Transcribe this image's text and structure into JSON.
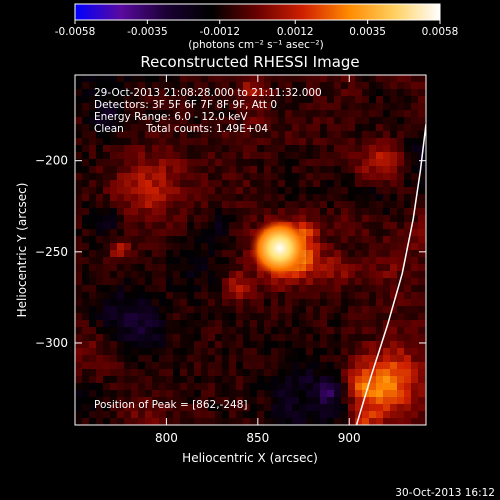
{
  "chart_data": {
    "type": "heatmap",
    "title": "Reconstructed RHESSI Image",
    "xlabel": "Heliocentric X (arcsec)",
    "ylabel": "Heliocentric Y (arcsec)",
    "xlim": [
      750,
      942
    ],
    "ylim": [
      -345,
      -153
    ],
    "x_ticks": [
      800,
      850,
      900
    ],
    "y_ticks": [
      -200,
      -250,
      -300
    ],
    "colorbar": {
      "min": -0.0058,
      "max": 0.0058,
      "tick_values": [
        -0.0058,
        -0.0035,
        -0.0012,
        0.0012,
        0.0035,
        0.0058
      ],
      "tick_labels": [
        "-0.0058",
        "-0.0035",
        "-0.0012",
        "0.0012",
        "0.0035",
        "0.0058"
      ],
      "unit_label": "(photons cm⁻² s⁻¹ asec⁻²)",
      "colormap": [
        "#0000ff",
        "#5a0aa0",
        "#1a0033",
        "#000000",
        "#6a0000",
        "#d02000",
        "#ff8a00",
        "#ffd060",
        "#ffffff"
      ]
    },
    "annotations": {
      "time_range": "29-Oct-2013 21:08:28.000 to 21:11:32.000",
      "detectors": "Detectors: 3F 5F 6F 7F 8F 9F, Att 0",
      "energy": "Energy Range: 6.0 - 12.0 keV",
      "clean": "Clean",
      "total_counts": "Total counts: 1.49E+04",
      "peak": "Position of Peak = [862,-248]"
    },
    "peak": {
      "x": 862,
      "y": -248
    },
    "limb": [
      [
        904,
        -345
      ],
      [
        912,
        -318
      ],
      [
        921,
        -290
      ],
      [
        929,
        -262
      ],
      [
        935,
        -232
      ],
      [
        939,
        -205
      ],
      [
        942,
        -180
      ]
    ]
  },
  "footer": {
    "timestamp": "30-Oct-2013 16:12"
  }
}
